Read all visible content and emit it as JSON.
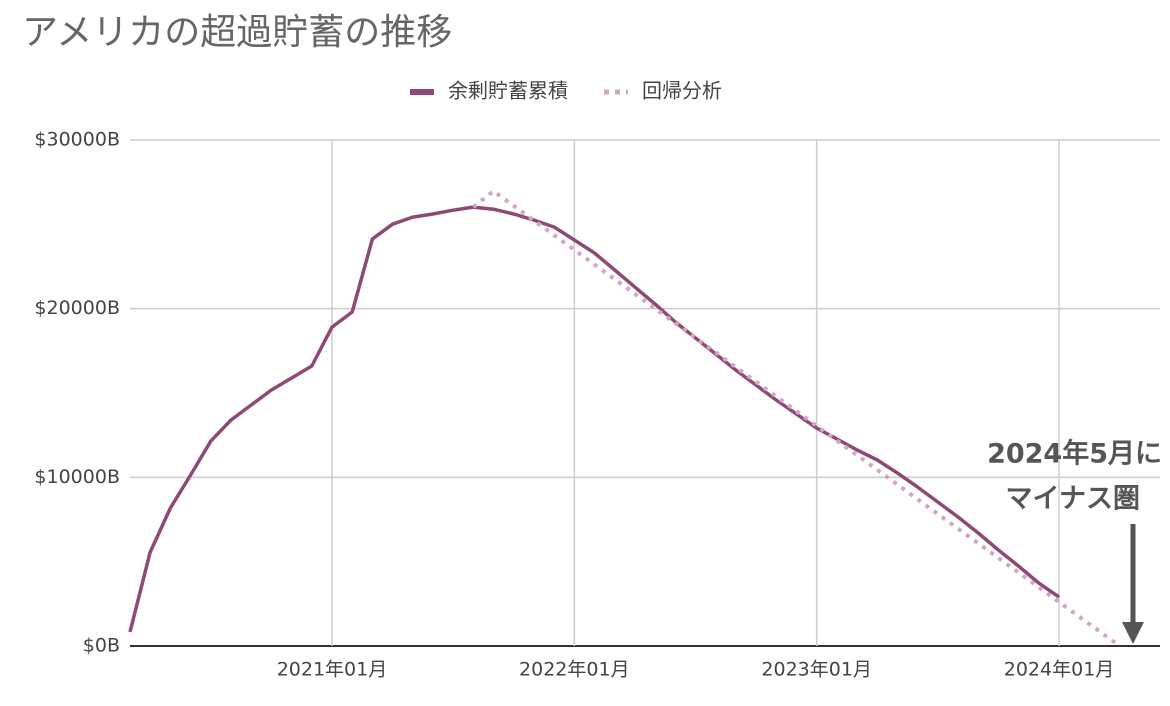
{
  "chart_data": {
    "type": "line",
    "title": "アメリカの超過貯蓄の推移",
    "x": [
      "2020-03",
      "2020-04",
      "2020-05",
      "2020-06",
      "2020-07",
      "2020-08",
      "2020-09",
      "2020-10",
      "2020-11",
      "2020-12",
      "2021-01",
      "2021-02",
      "2021-03",
      "2021-04",
      "2021-05",
      "2021-06",
      "2021-07",
      "2021-08",
      "2021-09",
      "2021-10",
      "2021-11",
      "2021-12",
      "2022-01",
      "2022-02",
      "2022-03",
      "2022-04",
      "2022-05",
      "2022-06",
      "2022-07",
      "2022-08",
      "2022-09",
      "2022-10",
      "2022-11",
      "2022-12",
      "2023-01",
      "2023-02",
      "2023-03",
      "2023-04",
      "2023-05",
      "2023-06",
      "2023-07",
      "2023-08",
      "2023-09",
      "2023-10",
      "2023-11",
      "2023-12",
      "2024-01",
      "2024-02",
      "2024-03",
      "2024-04",
      "2024-05",
      "2024-06"
    ],
    "xlim": [
      "2020-03",
      "2024-06"
    ],
    "xticks": [
      {
        "value": "2021-01",
        "label": "2021年01月"
      },
      {
        "value": "2022-01",
        "label": "2022年01月"
      },
      {
        "value": "2023-01",
        "label": "2023年01月"
      },
      {
        "value": "2024-01",
        "label": "2024年01月"
      }
    ],
    "ylim": [
      0,
      30000
    ],
    "yticks": [
      {
        "value": 0,
        "label": "$0B"
      },
      {
        "value": 10000,
        "label": "$10000B"
      },
      {
        "value": 20000,
        "label": "$20000B"
      },
      {
        "value": 30000,
        "label": "$30000B"
      }
    ],
    "grid": true,
    "legend": "top",
    "series": [
      {
        "name": "余剰貯蓄累積",
        "color": "#8e4a74",
        "style": "solid",
        "values": [
          830,
          5570,
          8180,
          10140,
          12150,
          13400,
          14290,
          15180,
          15890,
          16600,
          18910,
          19800,
          24130,
          25010,
          25430,
          25610,
          25840,
          26020,
          25900,
          25610,
          25250,
          24840,
          24070,
          23300,
          22290,
          21280,
          20270,
          19210,
          18260,
          17310,
          16360,
          15470,
          14580,
          13750,
          12920,
          12270,
          11620,
          11030,
          10250,
          9420,
          8540,
          7650,
          6700,
          5690,
          4740,
          3730,
          2900,
          null,
          null,
          null,
          null,
          null
        ]
      },
      {
        "name": "回帰分析",
        "color": "#d3a6c4",
        "style": "dotted",
        "values": [
          null,
          null,
          null,
          null,
          null,
          null,
          null,
          null,
          null,
          null,
          null,
          null,
          null,
          null,
          null,
          null,
          null,
          26020,
          26970,
          26100,
          25230,
          24360,
          23490,
          22620,
          21750,
          20880,
          20010,
          19140,
          18270,
          17400,
          16530,
          15660,
          14790,
          13920,
          13050,
          12180,
          11310,
          10440,
          9570,
          8700,
          7830,
          6960,
          6090,
          5220,
          4350,
          3480,
          2610,
          1740,
          870,
          0,
          null,
          null
        ]
      }
    ],
    "annotation": [
      "2024年5月に",
      "マイナス圏"
    ]
  }
}
